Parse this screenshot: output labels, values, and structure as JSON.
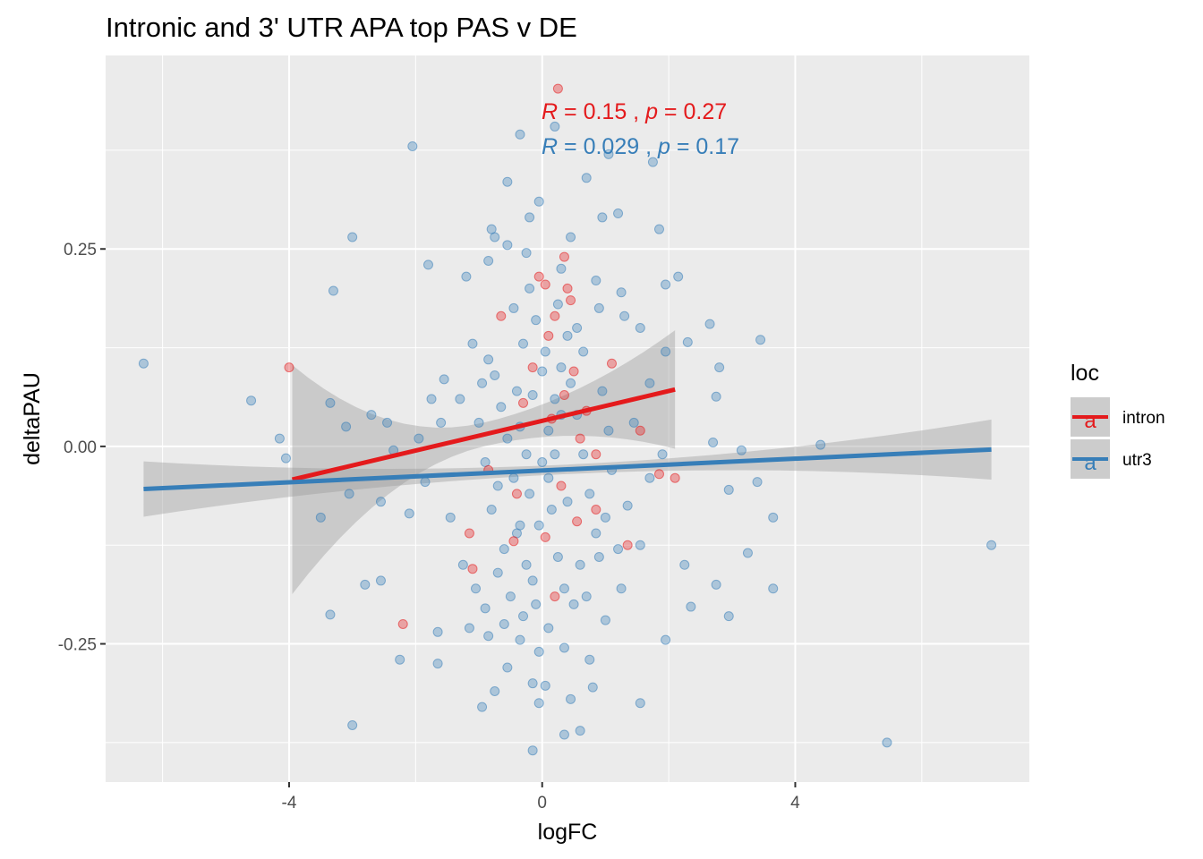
{
  "chart_data": {
    "type": "scatter",
    "title": "Intronic and 3' UTR APA top PAS v DE",
    "xlabel": "logFC",
    "ylabel": "deltaPAU",
    "xlim": [
      -6.9,
      7.7
    ],
    "ylim": [
      -0.425,
      0.495
    ],
    "x_ticks": [
      -4,
      0,
      4
    ],
    "x_tick_labels": [
      "-4",
      "0",
      "4"
    ],
    "y_ticks": [
      -0.25,
      0.0,
      0.25
    ],
    "y_tick_labels": [
      "-0.25",
      "0.00",
      "0.25"
    ],
    "grid": true,
    "legend": {
      "title": "loc",
      "position": "right",
      "entries": [
        {
          "label": "intron",
          "key_glyph": "a",
          "color": "#e41a1c"
        },
        {
          "label": "utr3",
          "key_glyph": "a",
          "color": "#377eb8"
        }
      ]
    },
    "series": [
      {
        "name": "intron",
        "color": "#e41a1c",
        "fit": {
          "x0": -3.95,
          "y0": -0.042,
          "x1": 2.1,
          "y1": 0.072
        },
        "annotation": {
          "R": "0.15",
          "p": "0.27"
        },
        "points": [
          [
            0.25,
            0.453
          ],
          [
            -4.0,
            0.1
          ],
          [
            -0.65,
            0.165
          ],
          [
            -0.05,
            0.215
          ],
          [
            0.05,
            0.205
          ],
          [
            0.35,
            0.24
          ],
          [
            0.4,
            0.2
          ],
          [
            0.45,
            0.185
          ],
          [
            0.2,
            0.165
          ],
          [
            0.1,
            0.14
          ],
          [
            -0.15,
            0.1
          ],
          [
            0.5,
            0.095
          ],
          [
            1.1,
            0.105
          ],
          [
            0.35,
            0.065
          ],
          [
            -0.3,
            0.055
          ],
          [
            0.15,
            0.035
          ],
          [
            0.6,
            0.01
          ],
          [
            0.85,
            -0.01
          ],
          [
            1.85,
            -0.035
          ],
          [
            2.1,
            -0.04
          ],
          [
            -0.4,
            -0.06
          ],
          [
            0.3,
            -0.05
          ],
          [
            -1.15,
            -0.11
          ],
          [
            -0.45,
            -0.12
          ],
          [
            0.05,
            -0.115
          ],
          [
            1.35,
            -0.125
          ],
          [
            -1.1,
            -0.155
          ],
          [
            0.2,
            -0.19
          ],
          [
            -2.2,
            -0.225
          ],
          [
            0.55,
            -0.095
          ],
          [
            0.85,
            -0.08
          ],
          [
            -0.85,
            -0.03
          ],
          [
            1.55,
            0.02
          ],
          [
            0.7,
            0.045
          ]
        ]
      },
      {
        "name": "utr3",
        "color": "#377eb8",
        "fit": {
          "x0": -6.3,
          "y0": -0.054,
          "x1": 7.1,
          "y1": -0.004
        },
        "annotation": {
          "R": "0.029",
          "p": "0.17"
        },
        "points": [
          [
            -6.3,
            0.105
          ],
          [
            -2.05,
            0.38
          ],
          [
            -0.35,
            0.395
          ],
          [
            0.2,
            0.405
          ],
          [
            1.05,
            0.37
          ],
          [
            1.75,
            0.36
          ],
          [
            -0.55,
            0.335
          ],
          [
            -0.05,
            0.31
          ],
          [
            0.7,
            0.34
          ],
          [
            -3.0,
            0.265
          ],
          [
            -3.3,
            0.197
          ],
          [
            -1.8,
            0.23
          ],
          [
            -1.2,
            0.215
          ],
          [
            -0.85,
            0.235
          ],
          [
            -0.75,
            0.265
          ],
          [
            -0.55,
            0.255
          ],
          [
            -0.25,
            0.245
          ],
          [
            0.3,
            0.225
          ],
          [
            0.85,
            0.21
          ],
          [
            1.25,
            0.195
          ],
          [
            1.95,
            0.205
          ],
          [
            2.15,
            0.215
          ],
          [
            1.85,
            0.275
          ],
          [
            1.2,
            0.295
          ],
          [
            0.95,
            0.29
          ],
          [
            0.45,
            0.265
          ],
          [
            -0.2,
            0.29
          ],
          [
            -0.8,
            0.275
          ],
          [
            -2.7,
            0.04
          ],
          [
            -4.6,
            0.058
          ],
          [
            -4.15,
            0.01
          ],
          [
            -4.05,
            -0.015
          ],
          [
            -3.35,
            0.055
          ],
          [
            -3.1,
            0.025
          ],
          [
            -2.45,
            0.03
          ],
          [
            -2.35,
            -0.005
          ],
          [
            -1.95,
            0.01
          ],
          [
            -1.75,
            0.06
          ],
          [
            -1.55,
            0.085
          ],
          [
            -1.1,
            0.13
          ],
          [
            -2.1,
            -0.085
          ],
          [
            -2.55,
            -0.07
          ],
          [
            -3.05,
            -0.06
          ],
          [
            -3.5,
            -0.09
          ],
          [
            -3.35,
            -0.213
          ],
          [
            -2.25,
            -0.27
          ],
          [
            -1.65,
            -0.275
          ],
          [
            -1.65,
            -0.235
          ],
          [
            -2.55,
            -0.17
          ],
          [
            -2.8,
            -0.175
          ],
          [
            -3.0,
            -0.353
          ],
          [
            -0.95,
            -0.33
          ],
          [
            -0.9,
            -0.205
          ],
          [
            -0.6,
            -0.225
          ],
          [
            -0.15,
            -0.3
          ],
          [
            0.05,
            -0.303
          ],
          [
            0.45,
            -0.32
          ],
          [
            0.35,
            -0.365
          ],
          [
            0.6,
            -0.36
          ],
          [
            1.55,
            -0.325
          ],
          [
            -0.15,
            -0.385
          ],
          [
            5.45,
            -0.375
          ],
          [
            7.1,
            -0.125
          ],
          [
            4.4,
            0.002
          ],
          [
            3.45,
            0.135
          ],
          [
            3.65,
            -0.09
          ],
          [
            3.65,
            -0.18
          ],
          [
            3.25,
            -0.135
          ],
          [
            2.95,
            -0.215
          ],
          [
            2.75,
            -0.175
          ],
          [
            2.35,
            -0.203
          ],
          [
            2.25,
            -0.15
          ],
          [
            2.95,
            -0.055
          ],
          [
            3.4,
            -0.045
          ],
          [
            3.15,
            -0.005
          ],
          [
            2.7,
            0.005
          ],
          [
            2.75,
            0.063
          ],
          [
            2.8,
            0.1
          ],
          [
            2.65,
            0.155
          ],
          [
            2.3,
            0.132
          ],
          [
            1.95,
            -0.245
          ],
          [
            1.55,
            -0.125
          ],
          [
            1.25,
            -0.18
          ],
          [
            1.0,
            -0.22
          ],
          [
            0.75,
            -0.27
          ],
          [
            0.35,
            -0.255
          ],
          [
            -0.35,
            -0.245
          ],
          [
            -0.85,
            -0.24
          ],
          [
            -1.15,
            -0.23
          ],
          [
            -0.55,
            -0.28
          ],
          [
            -0.75,
            -0.31
          ],
          [
            -0.05,
            -0.325
          ],
          [
            0.8,
            -0.305
          ],
          [
            1.2,
            -0.13
          ],
          [
            1.35,
            -0.075
          ],
          [
            1.7,
            -0.04
          ],
          [
            1.9,
            -0.01
          ],
          [
            1.45,
            0.03
          ],
          [
            1.7,
            0.08
          ],
          [
            1.95,
            0.12
          ],
          [
            1.55,
            0.15
          ],
          [
            1.3,
            0.165
          ],
          [
            0.9,
            0.175
          ],
          [
            0.55,
            0.15
          ],
          [
            -0.45,
            0.175
          ],
          [
            -1.3,
            0.06
          ],
          [
            -1.6,
            0.03
          ],
          [
            -1.85,
            -0.045
          ],
          [
            -1.45,
            -0.09
          ],
          [
            -1.25,
            -0.15
          ],
          [
            -1.05,
            -0.18
          ],
          [
            -0.7,
            -0.16
          ],
          [
            -0.4,
            -0.11
          ],
          [
            -0.2,
            -0.06
          ],
          [
            0.0,
            -0.02
          ],
          [
            0.1,
            0.02
          ],
          [
            0.2,
            0.06
          ],
          [
            0.3,
            0.1
          ],
          [
            0.4,
            0.14
          ],
          [
            0.15,
            -0.08
          ],
          [
            0.25,
            -0.14
          ],
          [
            0.35,
            -0.18
          ],
          [
            -0.1,
            -0.2
          ],
          [
            -0.25,
            -0.15
          ],
          [
            -0.35,
            -0.1
          ],
          [
            -0.45,
            -0.04
          ],
          [
            -0.55,
            0.01
          ],
          [
            -0.65,
            0.05
          ],
          [
            -0.75,
            0.09
          ],
          [
            -0.3,
            0.13
          ],
          [
            -0.1,
            0.16
          ],
          [
            0.05,
            0.12
          ],
          [
            0.45,
            0.08
          ],
          [
            0.55,
            0.04
          ],
          [
            0.65,
            -0.01
          ],
          [
            0.75,
            -0.06
          ],
          [
            0.85,
            -0.11
          ],
          [
            0.6,
            -0.15
          ],
          [
            0.5,
            -0.2
          ],
          [
            0.1,
            -0.23
          ],
          [
            -0.05,
            -0.26
          ],
          [
            -0.15,
            -0.17
          ],
          [
            -0.5,
            -0.19
          ],
          [
            -0.6,
            -0.13
          ],
          [
            -0.8,
            -0.08
          ],
          [
            -0.9,
            -0.02
          ],
          [
            -1.0,
            0.03
          ],
          [
            -0.95,
            0.08
          ],
          [
            -0.85,
            0.11
          ],
          [
            -0.2,
            0.2
          ],
          [
            0.25,
            0.18
          ],
          [
            0.65,
            0.12
          ],
          [
            0.95,
            0.07
          ],
          [
            1.05,
            0.02
          ],
          [
            1.1,
            -0.03
          ],
          [
            1.0,
            -0.09
          ],
          [
            0.9,
            -0.14
          ],
          [
            0.7,
            -0.19
          ],
          [
            -0.3,
            -0.215
          ],
          [
            -0.7,
            -0.05
          ],
          [
            -0.35,
            0.025
          ],
          [
            -0.15,
            0.065
          ],
          [
            0.0,
            0.095
          ],
          [
            0.1,
            -0.04
          ],
          [
            -0.05,
            -0.1
          ],
          [
            0.2,
            -0.01
          ],
          [
            0.3,
            0.04
          ],
          [
            -0.25,
            -0.01
          ],
          [
            0.4,
            -0.07
          ],
          [
            -0.4,
            0.07
          ]
        ]
      }
    ]
  }
}
